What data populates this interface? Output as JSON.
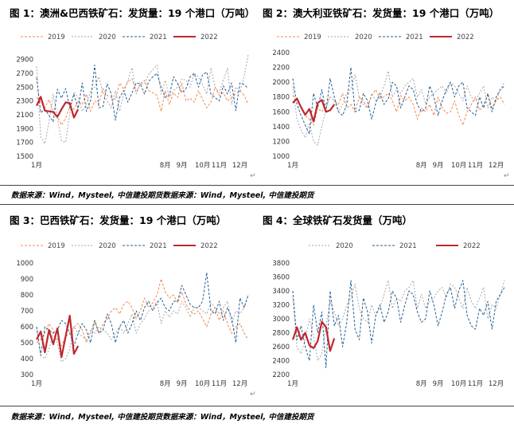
{
  "titles": {
    "c1": "图 1：澳洲&巴西铁矿石：发货量：19 个港口（万吨）",
    "c2": "图 2：澳大利亚铁矿石：发货量：19 个港口（万吨）",
    "c3": "图 3：巴西铁矿石：发货量：19 个港口（万吨）",
    "c4": "图 4：全球铁矿石发货量（万吨）"
  },
  "sources": {
    "top": "数据来源：Wind，Mysteel, 中信建投期货数据来源：Wind，Mysteel, 中信建投期货",
    "bottom": "数据来源：Wind，Mysteel, 中信建投期货数据来源：Wind，Mysteel, 中信建投期货"
  },
  "colors": {
    "s2019": "#f4874b",
    "s2020": "#a6a6a6",
    "s2021": "#255e91",
    "s2022": "#c0272d"
  },
  "chart_data": [
    {
      "type": "line",
      "title": "图 1：澳洲&巴西铁矿石：发货量：19 个港口（万吨）",
      "x_tick_labels": [
        "1月",
        "8月",
        "9月",
        "10月",
        "11月",
        "12月"
      ],
      "x_tick_weeks": [
        1,
        32,
        36,
        41,
        45,
        50
      ],
      "ylim": [
        1500,
        3000
      ],
      "y_ticks": [
        1500,
        1700,
        1900,
        2100,
        2300,
        2500,
        2700,
        2900
      ],
      "legend_position": "top",
      "series": [
        {
          "name": "2019",
          "values": [
            2350,
            2280,
            2200,
            2320,
            2150,
            2080,
            1950,
            2050,
            2220,
            2180,
            2300,
            2250,
            2400,
            2150,
            2300,
            2260,
            2480,
            2380,
            2350,
            2320,
            2560,
            2470,
            2580,
            2620,
            2430,
            2550,
            2600,
            2450,
            2420,
            2380,
            2150,
            2450,
            2250,
            2420,
            2350,
            2560,
            2300,
            2340,
            2280,
            2450,
            2320,
            2200,
            2280,
            2500,
            2380,
            2420,
            2300,
            2350,
            2400,
            2450,
            2380,
            2250
          ]
        },
        {
          "name": "2020",
          "values": [
            2800,
            1780,
            1680,
            2000,
            2400,
            2050,
            1720,
            1700,
            2120,
            2430,
            2350,
            2150,
            2250,
            2450,
            2500,
            2650,
            2420,
            2300,
            2200,
            2450,
            2150,
            2400,
            2600,
            2780,
            2400,
            2550,
            2550,
            2680,
            2750,
            2820,
            2400,
            2600,
            2350,
            2450,
            2500,
            2620,
            2600,
            2500,
            2700,
            2650,
            2540,
            2400,
            2780,
            2500,
            2420,
            2600,
            2780,
            2250,
            2500,
            2430,
            2650,
            2970
          ]
        },
        {
          "name": "2021",
          "values": [
            2640,
            2130,
            2180,
            2090,
            2000,
            2470,
            2340,
            2480,
            2200,
            2400,
            2190,
            2560,
            2150,
            2300,
            2820,
            2200,
            2220,
            2550,
            2400,
            2020,
            2350,
            2450,
            2280,
            2420,
            2560,
            2550,
            2400,
            2580,
            2650,
            2700,
            2500,
            2350,
            2380,
            2650,
            2550,
            2420,
            2480,
            2650,
            2700,
            2500,
            2680,
            2720,
            2400,
            2350,
            2300,
            2520,
            2400,
            2560,
            2160,
            2560,
            2540,
            2480
          ]
        },
        {
          "name": "2022",
          "values": [
            2230,
            2360,
            2160,
            2150,
            2140,
            2070,
            2180,
            2280,
            2270,
            2060,
            2180
          ]
        }
      ]
    },
    {
      "type": "line",
      "title": "图 2：澳大利亚铁矿石：发货量：19 个港口（万吨）",
      "x_tick_labels": [
        "1月",
        "8月",
        "9月",
        "10月",
        "11月",
        "12月"
      ],
      "x_tick_weeks": [
        1,
        32,
        36,
        41,
        45,
        50
      ],
      "ylim": [
        1000,
        2400
      ],
      "y_ticks": [
        1000,
        1200,
        1400,
        1600,
        1800,
        2000,
        2200,
        2400
      ],
      "legend_position": "top",
      "series": [
        {
          "name": "2019",
          "values": [
            1820,
            1760,
            1650,
            1550,
            1500,
            1420,
            1650,
            1600,
            1700,
            1800,
            1750,
            1700,
            1850,
            1650,
            1700,
            1600,
            1800,
            1750,
            1650,
            1820,
            1900,
            1780,
            1800,
            1850,
            1750,
            1600,
            1820,
            1750,
            1800,
            1700,
            1500,
            1650,
            1600,
            1700,
            1550,
            1800,
            1650,
            1580,
            1600,
            1750,
            1550,
            1420,
            1600,
            1700,
            1800,
            1620,
            1700,
            1820,
            1650,
            1750,
            1800,
            1700
          ]
        },
        {
          "name": "2020",
          "values": [
            1950,
            1500,
            1350,
            1250,
            1450,
            1200,
            1150,
            1400,
            1650,
            1800,
            1750,
            1600,
            1700,
            1850,
            1900,
            2100,
            1800,
            1700,
            1650,
            1850,
            1750,
            1800,
            1950,
            2150,
            1800,
            1900,
            1850,
            1950,
            2000,
            2050,
            1800,
            1900,
            1700,
            1800,
            1850,
            1900,
            1950,
            1850,
            2000,
            1950,
            1850,
            1750,
            1950,
            1800,
            1750,
            1850,
            1950,
            1650,
            1800,
            1750,
            1900,
            2000
          ]
        },
        {
          "name": "2021",
          "values": [
            2050,
            1700,
            1550,
            1420,
            1300,
            1850,
            1650,
            1900,
            1600,
            2050,
            1800,
            1600,
            1550,
            1700,
            2200,
            1600,
            1620,
            1850,
            1750,
            1500,
            1720,
            1850,
            1700,
            1780,
            2000,
            1950,
            1650,
            1800,
            1950,
            1900,
            1700,
            1600,
            1650,
            1950,
            1800,
            1550,
            1750,
            1900,
            2000,
            1800,
            1950,
            2000,
            1650,
            1600,
            1550,
            1800,
            1650,
            1850,
            1600,
            1800,
            1900,
            1950
          ]
        },
        {
          "name": "2022",
          "values": [
            1720,
            1780,
            1660,
            1560,
            1640,
            1470,
            1720,
            1760,
            1600,
            1620,
            1700
          ]
        }
      ]
    },
    {
      "type": "line",
      "title": "图 3：巴西铁矿石：发货量：19 个港口（万吨）",
      "x_tick_labels": [
        "1月",
        "8月",
        "9月",
        "10月",
        "11月",
        "12月"
      ],
      "x_tick_weeks": [
        1,
        32,
        36,
        41,
        45,
        50
      ],
      "ylim": [
        300,
        1000
      ],
      "y_ticks": [
        300,
        400,
        500,
        600,
        700,
        800,
        900,
        1000
      ],
      "legend_position": "top",
      "series": [
        {
          "name": "2019",
          "values": [
            500,
            520,
            560,
            620,
            580,
            520,
            480,
            540,
            560,
            600,
            620,
            580,
            500,
            560,
            640,
            560,
            620,
            650,
            700,
            720,
            680,
            740,
            760,
            720,
            650,
            700,
            780,
            720,
            750,
            800,
            900,
            820,
            780,
            800,
            750,
            820,
            740,
            700,
            680,
            700,
            650,
            600,
            680,
            720,
            640,
            700,
            620,
            560,
            600,
            620,
            560,
            520
          ]
        },
        {
          "name": "2020",
          "values": [
            600,
            420,
            400,
            460,
            560,
            500,
            380,
            400,
            460,
            600,
            560,
            540,
            520,
            580,
            560,
            600,
            580,
            560,
            520,
            560,
            600,
            560,
            620,
            680,
            560,
            620,
            650,
            700,
            720,
            760,
            620,
            700,
            660,
            700,
            680,
            760,
            720,
            660,
            720,
            720,
            700,
            680,
            750,
            720,
            680,
            720,
            760,
            620,
            700,
            680,
            720,
            800
          ]
        },
        {
          "name": "2021",
          "values": [
            600,
            420,
            600,
            580,
            560,
            580,
            640,
            620,
            560,
            480,
            560,
            620,
            580,
            500,
            640,
            560,
            580,
            680,
            620,
            500,
            600,
            640,
            560,
            620,
            700,
            640,
            720,
            760,
            700,
            750,
            780,
            720,
            700,
            760,
            760,
            860,
            800,
            740,
            720,
            720,
            760,
            940,
            700,
            680,
            760,
            640,
            720,
            660,
            500,
            780,
            720,
            800
          ]
        },
        {
          "name": "2022",
          "values": [
            520,
            570,
            440,
            580,
            490,
            590,
            410,
            540,
            670,
            430,
            480
          ]
        }
      ]
    },
    {
      "type": "line",
      "title": "图 4：全球铁矿石发货量（万吨）",
      "x_tick_labels": [
        "1月",
        "8月",
        "9月",
        "10月",
        "11月",
        "12月"
      ],
      "x_tick_weeks": [
        1,
        32,
        36,
        41,
        45,
        50
      ],
      "ylim": [
        2200,
        3800
      ],
      "y_ticks": [
        2200,
        2400,
        2600,
        2800,
        3000,
        3200,
        3400,
        3600,
        3800
      ],
      "legend_position": "top",
      "series": [
        {
          "name": "2020",
          "values": [
            3300,
            2600,
            2500,
            2700,
            3000,
            2750,
            2400,
            2500,
            2900,
            3250,
            3100,
            2900,
            3000,
            3200,
            3300,
            3500,
            3150,
            3000,
            2950,
            3200,
            3050,
            3150,
            3350,
            3550,
            3150,
            3300,
            3250,
            3400,
            3450,
            3550,
            3150,
            3350,
            3150,
            3250,
            3300,
            3400,
            3450,
            3300,
            3500,
            3450,
            3300,
            3150,
            3450,
            3250,
            3150,
            3300,
            3450,
            3000,
            3200,
            3150,
            3350,
            3550
          ]
        },
        {
          "name": "2021",
          "values": [
            3400,
            2700,
            2900,
            2600,
            2400,
            3200,
            2800,
            3100,
            2300,
            3400,
            2900,
            3050,
            2600,
            2950,
            3550,
            2850,
            2700,
            3300,
            3100,
            2650,
            3050,
            3200,
            2950,
            3100,
            3400,
            3300,
            2950,
            3200,
            3400,
            3350,
            3100,
            2950,
            3000,
            3400,
            3200,
            2900,
            3100,
            3350,
            3450,
            3150,
            3400,
            3550,
            3050,
            2900,
            2850,
            3150,
            3050,
            3250,
            2850,
            3250,
            3350,
            3450
          ]
        },
        {
          "name": "2022",
          "values": [
            2700,
            2880,
            2700,
            2800,
            2620,
            2580,
            2680,
            2960,
            2880,
            2540,
            2720
          ]
        }
      ]
    }
  ]
}
